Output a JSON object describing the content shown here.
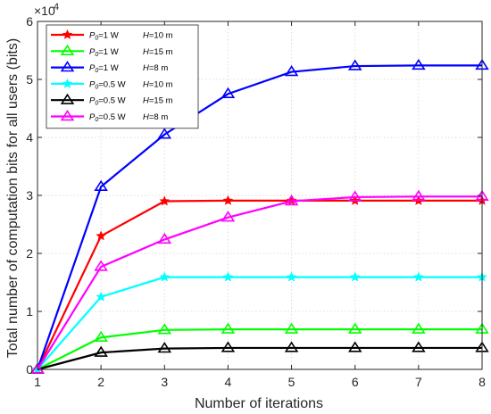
{
  "chart_data": {
    "type": "line",
    "title": "",
    "xlabel": "Number of iterations",
    "ylabel": "Total number of computation bits for all users (bits)",
    "y_multiplier": {
      "base": "×10",
      "exponent": "4"
    },
    "xlim": [
      1,
      8
    ],
    "ylim": [
      0,
      6
    ],
    "x_ticks": [
      "1",
      "2",
      "3",
      "4",
      "5",
      "6",
      "7",
      "8"
    ],
    "y_ticks": [
      "0",
      "1",
      "2",
      "3",
      "4",
      "5",
      "6"
    ],
    "grid": true,
    "legend_position": "top-left",
    "x": [
      1,
      2,
      3,
      4,
      5,
      6,
      7,
      8
    ],
    "series": [
      {
        "name": "P0=1 W H=10 m",
        "label_p": "P",
        "label_sub": "0",
        "label_power": "=1 W",
        "label_h": "H",
        "label_hval": "=10 m",
        "color": "#ff0000",
        "marker": "star",
        "values": [
          0,
          2.3,
          2.9,
          2.91,
          2.91,
          2.91,
          2.91,
          2.91
        ]
      },
      {
        "name": "P0=1 W H=15 m",
        "label_p": "P",
        "label_sub": "0",
        "label_power": "=1 W",
        "label_h": "H",
        "label_hval": "=15 m",
        "color": "#00ff00",
        "marker": "triangle",
        "values": [
          0,
          0.55,
          0.68,
          0.69,
          0.69,
          0.69,
          0.69,
          0.69
        ]
      },
      {
        "name": "P0=1 W H=8 m",
        "label_p": "P",
        "label_sub": "0",
        "label_power": "=1 W",
        "label_h": "H",
        "label_hval": "=8 m",
        "color": "#0000ff",
        "marker": "triangle",
        "values": [
          0,
          3.15,
          4.05,
          4.75,
          5.13,
          5.23,
          5.24,
          5.24
        ]
      },
      {
        "name": "P0=0.5 W H=10 m",
        "label_p": "P",
        "label_sub": "0",
        "label_power": "=0.5 W",
        "label_h": "H",
        "label_hval": "=10 m",
        "color": "#00ffff",
        "marker": "star",
        "values": [
          0,
          1.25,
          1.59,
          1.59,
          1.59,
          1.59,
          1.59,
          1.59
        ]
      },
      {
        "name": "P0=0.5 W H=15 m",
        "label_p": "P",
        "label_sub": "0",
        "label_power": "=0.5 W",
        "label_h": "H",
        "label_hval": "=15 m",
        "color": "#000000",
        "marker": "triangle",
        "values": [
          0,
          0.29,
          0.36,
          0.37,
          0.37,
          0.37,
          0.37,
          0.37
        ]
      },
      {
        "name": "P0=0.5 W H=8 m",
        "label_p": "P",
        "label_sub": "0",
        "label_power": "=0.5 W",
        "label_h": "H",
        "label_hval": "=8 m",
        "color": "#ff00ff",
        "marker": "triangle",
        "values": [
          0,
          1.77,
          2.24,
          2.62,
          2.9,
          2.97,
          2.98,
          2.98
        ]
      }
    ]
  }
}
